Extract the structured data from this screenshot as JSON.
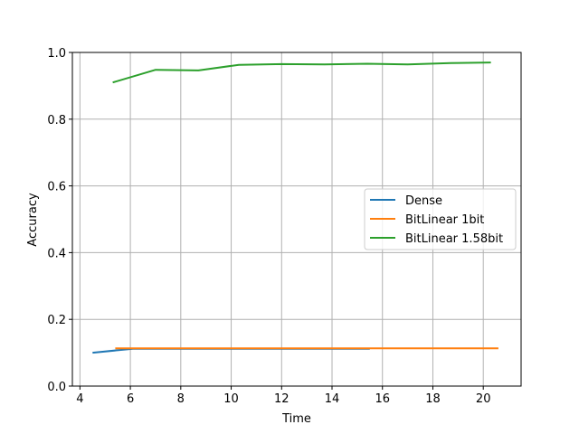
{
  "chart_data": {
    "type": "line",
    "title": "",
    "xlabel": "Time",
    "ylabel": "Accuracy",
    "xlim": [
      3.7,
      21.5
    ],
    "ylim": [
      0.0,
      1.0
    ],
    "grid": true,
    "legend_position": "center right",
    "x_ticks": [
      "4",
      "6",
      "8",
      "10",
      "12",
      "14",
      "16",
      "18",
      "20"
    ],
    "y_ticks": [
      "0.0",
      "0.2",
      "0.4",
      "0.6",
      "0.8",
      "1.0"
    ],
    "series": [
      {
        "name": "Dense",
        "color": "#1f77b4",
        "x": [
          4.5,
          6.1,
          7.8,
          9.5,
          11.2,
          12.9,
          14.6,
          15.5
        ],
        "y": [
          0.1,
          0.112,
          0.112,
          0.112,
          0.112,
          0.112,
          0.112,
          0.112
        ]
      },
      {
        "name": "BitLinear 1bit",
        "color": "#ff7f0e",
        "x": [
          5.4,
          7.1,
          8.8,
          10.4,
          12.1,
          13.8,
          15.5,
          17.2,
          18.9,
          20.6
        ],
        "y": [
          0.113,
          0.113,
          0.113,
          0.113,
          0.113,
          0.113,
          0.113,
          0.113,
          0.113,
          0.113
        ]
      },
      {
        "name": "BitLinear 1.58bit",
        "color": "#2ca02c",
        "x": [
          5.3,
          7.0,
          8.7,
          10.3,
          12.0,
          13.7,
          15.4,
          17.0,
          18.7,
          20.3
        ],
        "y": [
          0.91,
          0.948,
          0.946,
          0.963,
          0.965,
          0.964,
          0.966,
          0.964,
          0.968,
          0.97
        ]
      }
    ]
  }
}
